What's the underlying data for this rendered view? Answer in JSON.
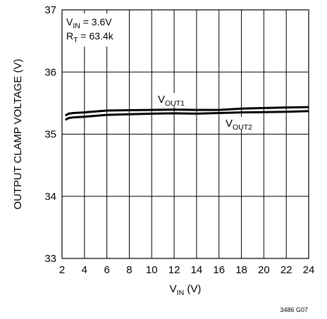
{
  "chart_data": {
    "type": "line",
    "xlabel": {
      "main": "V",
      "sub": "IN",
      "unit": " (V)"
    },
    "ylabel": "OUTPUT CLAMP VOLTAGE (V)",
    "xlim": [
      2,
      24
    ],
    "ylim": [
      33,
      37
    ],
    "x_ticks": [
      2,
      4,
      6,
      8,
      10,
      12,
      14,
      16,
      18,
      20,
      22,
      24
    ],
    "y_ticks": [
      33,
      34,
      35,
      36,
      37
    ],
    "grid": true,
    "annotations": [
      {
        "main": "V",
        "sub": "IN",
        "rest": " = 3.6V"
      },
      {
        "main": "R",
        "sub": "T",
        "rest": " = 63.4k"
      }
    ],
    "series": [
      {
        "name": {
          "main": "V",
          "sub": "OUT1"
        },
        "x": [
          2.3,
          2.6,
          3,
          4,
          6,
          8,
          10,
          12,
          14,
          16,
          18,
          20,
          22,
          24
        ],
        "y": [
          35.3,
          35.33,
          35.34,
          35.35,
          35.38,
          35.385,
          35.39,
          35.395,
          35.39,
          35.39,
          35.41,
          35.42,
          35.43,
          35.435
        ]
      },
      {
        "name": {
          "main": "V",
          "sub": "OUT2"
        },
        "x": [
          2.3,
          2.6,
          3,
          4,
          6,
          8,
          10,
          12,
          14,
          16,
          18,
          20,
          22,
          24
        ],
        "y": [
          35.23,
          35.26,
          35.27,
          35.28,
          35.31,
          35.32,
          35.33,
          35.335,
          35.33,
          35.34,
          35.35,
          35.355,
          35.36,
          35.37
        ]
      }
    ],
    "figure_id": "3486 G07",
    "line_color": "#000000",
    "grid_color": "#000000"
  }
}
